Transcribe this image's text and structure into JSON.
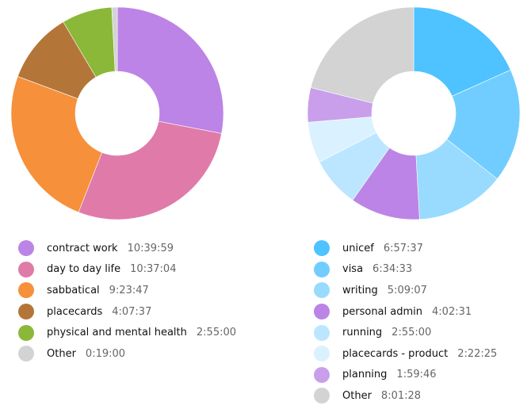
{
  "chart_data": [
    {
      "type": "pie",
      "variant": "donut",
      "title": "",
      "categories": [
        "contract work",
        "day to day life",
        "sabbatical",
        "placecards",
        "physical and mental health",
        "Other"
      ],
      "values": [
        "10:39:59",
        "10:37:04",
        "9:23:47",
        "4:07:37",
        "2:55:00",
        "0:19:00"
      ],
      "values_seconds": [
        38399,
        38224,
        33827,
        14857,
        10500,
        1140
      ],
      "colors": [
        "#bc84e6",
        "#df7aa9",
        "#f6903a",
        "#b37638",
        "#8bb838",
        "#d3d3d3"
      ],
      "legend_position": "bottom"
    },
    {
      "type": "pie",
      "variant": "donut",
      "title": "",
      "categories": [
        "unicef",
        "visa",
        "writing",
        "personal admin",
        "running",
        "placecards - product",
        "planning",
        "Other"
      ],
      "values": [
        "6:57:37",
        "6:34:33",
        "5:09:07",
        "4:02:31",
        "2:55:00",
        "2:22:25",
        "1:59:46",
        "8:01:28"
      ],
      "values_seconds": [
        25057,
        23673,
        18547,
        14551,
        10500,
        8545,
        7186,
        28888
      ],
      "colors": [
        "#4ec3ff",
        "#71cdff",
        "#98dbff",
        "#bc84e6",
        "#bce6ff",
        "#daf1ff",
        "#c99fec",
        "#d3d3d3"
      ],
      "legend_position": "bottom"
    }
  ],
  "left_legend": {
    "items": [
      {
        "label": "contract work",
        "value": "10:39:59",
        "color": "#bc84e6"
      },
      {
        "label": "day to day life",
        "value": "10:37:04",
        "color": "#df7aa9"
      },
      {
        "label": "sabbatical",
        "value": "9:23:47",
        "color": "#f6903a"
      },
      {
        "label": "placecards",
        "value": "4:07:37",
        "color": "#b37638"
      },
      {
        "label": "physical and mental health",
        "value": "2:55:00",
        "color": "#8bb838"
      },
      {
        "label": "Other",
        "value": "0:19:00",
        "color": "#d3d3d3"
      }
    ]
  },
  "right_legend": {
    "items": [
      {
        "label": "unicef",
        "value": "6:57:37",
        "color": "#4ec3ff"
      },
      {
        "label": "visa",
        "value": "6:34:33",
        "color": "#71cdff"
      },
      {
        "label": "writing",
        "value": "5:09:07",
        "color": "#98dbff"
      },
      {
        "label": "personal admin",
        "value": "4:02:31",
        "color": "#bc84e6"
      },
      {
        "label": "running",
        "value": "2:55:00",
        "color": "#bce6ff"
      },
      {
        "label": "placecards - product",
        "value": "2:22:25",
        "color": "#daf1ff"
      },
      {
        "label": "planning",
        "value": "1:59:46",
        "color": "#c99fec"
      },
      {
        "label": "Other",
        "value": "8:01:28",
        "color": "#d3d3d3"
      }
    ]
  }
}
